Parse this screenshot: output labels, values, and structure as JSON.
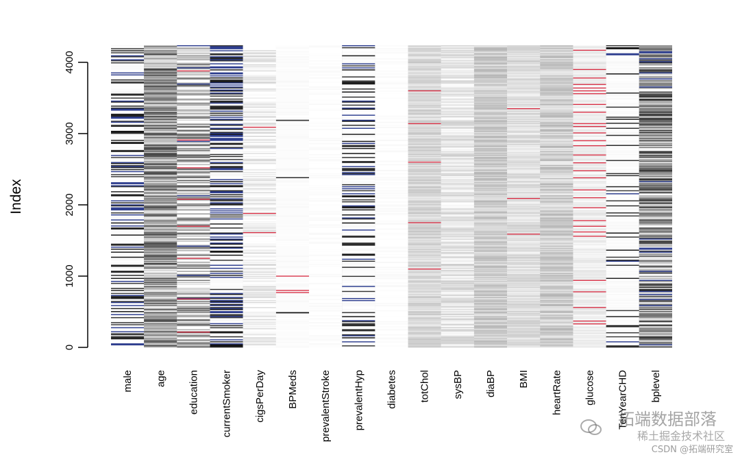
{
  "chart_data": {
    "type": "heatmap",
    "title": "",
    "xlabel": "",
    "ylabel": "Index",
    "ylim": [
      0,
      4240
    ],
    "y_ticks": [
      0,
      1000,
      2000,
      3000,
      4000
    ],
    "y_tick_labels": [
      "0",
      "1000",
      "2000",
      "3000",
      "4000"
    ],
    "categories": [
      "male",
      "age",
      "education",
      "currentSmoker",
      "cigsPerDay",
      "BPMeds",
      "prevalentStroke",
      "prevalentHyp",
      "diabetes",
      "totChol",
      "sysBP",
      "diaBP",
      "BMI",
      "heartRate",
      "glucose",
      "TenYearCHD",
      "bplevel"
    ],
    "rows": 4240,
    "missing_color": "#d7263d",
    "binary_high_color": "#2e3e8f",
    "columns": [
      {
        "name": "male",
        "variable": "binary",
        "base": 0.62,
        "contrast": 0.95,
        "blue_rate": 0.08,
        "missing": []
      },
      {
        "name": "age",
        "variable": "continuous",
        "base": 0.62,
        "contrast": 0.35,
        "blue_rate": 0,
        "missing": []
      },
      {
        "name": "education",
        "variable": "ordinal",
        "base": 0.75,
        "contrast": 0.55,
        "blue_rate": 0.02,
        "missing": [
          215,
          680,
          1250,
          1700,
          2080,
          2520,
          2910,
          3880
        ]
      },
      {
        "name": "currentSmoker",
        "variable": "binary",
        "base": 0.5,
        "contrast": 0.95,
        "blue_rate": 0.12,
        "missing": []
      },
      {
        "name": "cigsPerDay",
        "variable": "continuous",
        "base": 0.95,
        "contrast": 0.12,
        "blue_rate": 0,
        "missing": [
          1610,
          1880,
          3090
        ]
      },
      {
        "name": "BPMeds",
        "variable": "binary",
        "base": 0.99,
        "contrast": 0.95,
        "blue_rate": 0,
        "missing": [
          770,
          800,
          1000
        ]
      },
      {
        "name": "prevalentStroke",
        "variable": "binary",
        "base": 1.0,
        "contrast": 0.95,
        "blue_rate": 0,
        "missing": []
      },
      {
        "name": "prevalentHyp",
        "variable": "binary",
        "base": 0.72,
        "contrast": 0.95,
        "blue_rate": 0.06,
        "missing": []
      },
      {
        "name": "diabetes",
        "variable": "binary",
        "base": 1.0,
        "contrast": 0.95,
        "blue_rate": 0,
        "missing": []
      },
      {
        "name": "totChol",
        "variable": "continuous",
        "base": 0.85,
        "contrast": 0.08,
        "blue_rate": 0,
        "missing": [
          1100,
          1750,
          2600,
          3140,
          3600
        ]
      },
      {
        "name": "sysBP",
        "variable": "continuous",
        "base": 0.9,
        "contrast": 0.1,
        "blue_rate": 0,
        "missing": []
      },
      {
        "name": "diaBP",
        "variable": "continuous",
        "base": 0.8,
        "contrast": 0.1,
        "blue_rate": 0,
        "missing": []
      },
      {
        "name": "BMI",
        "variable": "continuous",
        "base": 0.88,
        "contrast": 0.08,
        "blue_rate": 0,
        "missing": [
          1590,
          2090,
          3350
        ]
      },
      {
        "name": "heartRate",
        "variable": "continuous",
        "base": 0.82,
        "contrast": 0.12,
        "blue_rate": 0,
        "missing": []
      },
      {
        "name": "glucose",
        "variable": "continuous",
        "base": 0.94,
        "contrast": 0.05,
        "blue_rate": 0,
        "missing": [
          330,
          370,
          560,
          780,
          940,
          1560,
          1620,
          1700,
          1780,
          1960,
          2100,
          2210,
          2380,
          2480,
          2590,
          2700,
          2830,
          2900,
          3010,
          3100,
          3140,
          3300,
          3410,
          3560,
          3600,
          3640,
          3690,
          3780,
          3900,
          4170
        ]
      },
      {
        "name": "TenYearCHD",
        "variable": "binary",
        "base": 0.82,
        "contrast": 0.95,
        "blue_rate": 0.04,
        "missing": []
      },
      {
        "name": "bplevel",
        "variable": "ordinal",
        "base": 0.55,
        "contrast": 0.55,
        "blue_rate": 0.05,
        "missing": []
      }
    ]
  },
  "watermark": {
    "brand": "拓端数据部落",
    "community": "稀土掘金技术社区",
    "credit": "CSDN @拓端研究室"
  }
}
